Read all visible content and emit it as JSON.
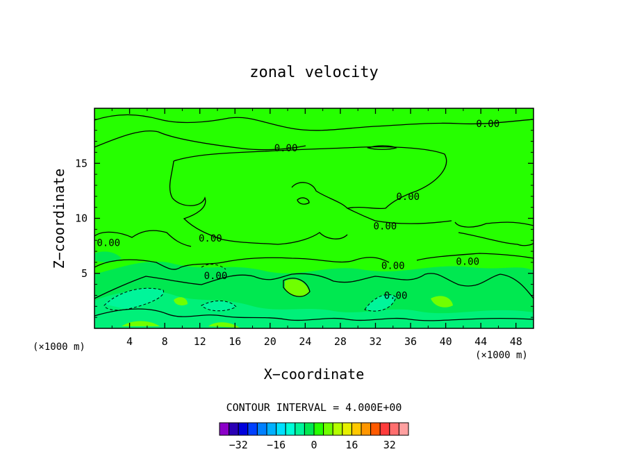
{
  "chart_data": {
    "type": "heatmap",
    "title": "zonal velocity",
    "xlabel": "X−coordinate",
    "ylabel": "Z−coordinate",
    "x_unit": "(×1000 m)",
    "z_unit": "(×1000 m)",
    "xlim": [
      0,
      50
    ],
    "ylim": [
      0,
      20
    ],
    "x_ticks": [
      4,
      8,
      12,
      16,
      20,
      24,
      28,
      32,
      36,
      40,
      44,
      48
    ],
    "x_tick_labels": [
      "4",
      "8",
      "12",
      "16",
      "20",
      "24",
      "28",
      "32",
      "36",
      "40",
      "44",
      "48"
    ],
    "y_ticks": [
      5,
      10,
      15
    ],
    "y_tick_labels": [
      "5",
      "10",
      "15"
    ],
    "contour_interval_text": "CONTOUR INTERVAL = 4.000E+00",
    "contour_label": "0.00",
    "contour_labels": [
      {
        "x": 44.8,
        "z": 18.6,
        "text": "0.00"
      },
      {
        "x": 21.8,
        "z": 16.4,
        "text": "0.00"
      },
      {
        "x": 35.7,
        "z": 12.0,
        "text": "0.00"
      },
      {
        "x": 33.1,
        "z": 9.3,
        "text": "0.00"
      },
      {
        "x": 13.2,
        "z": 8.2,
        "text": "0.00"
      },
      {
        "x": 1.6,
        "z": 7.8,
        "text": "0.00"
      },
      {
        "x": 42.5,
        "z": 6.1,
        "text": "0.00"
      },
      {
        "x": 34.0,
        "z": 5.7,
        "text": "0.00"
      },
      {
        "x": 13.8,
        "z": 4.8,
        "text": "0.00"
      },
      {
        "x": 34.3,
        "z": 3.0,
        "text": "0.00"
      }
    ],
    "colorbar": {
      "levels": [
        -36,
        -32,
        -28,
        -24,
        -20,
        -16,
        -12,
        -8,
        -4,
        0,
        4,
        8,
        12,
        16,
        20,
        24,
        28,
        32,
        36
      ],
      "colors": [
        "#8b00c8",
        "#2a00b4",
        "#0000dc",
        "#0040ff",
        "#0080ff",
        "#00b0ff",
        "#00e0ff",
        "#00ffd8",
        "#00f59a",
        "#00e850",
        "#26ff00",
        "#70ff00",
        "#b4ff00",
        "#e6f000",
        "#ffc800",
        "#ff9600",
        "#ff5a00",
        "#ff3c3c",
        "#ff6e6e",
        "#ffa0a0"
      ],
      "tick_values": [
        -32,
        -16,
        0,
        16,
        32
      ],
      "tick_labels": [
        "−32",
        "−16",
        "0",
        "16",
        "32"
      ]
    },
    "background_value_color": "#26ff00"
  }
}
